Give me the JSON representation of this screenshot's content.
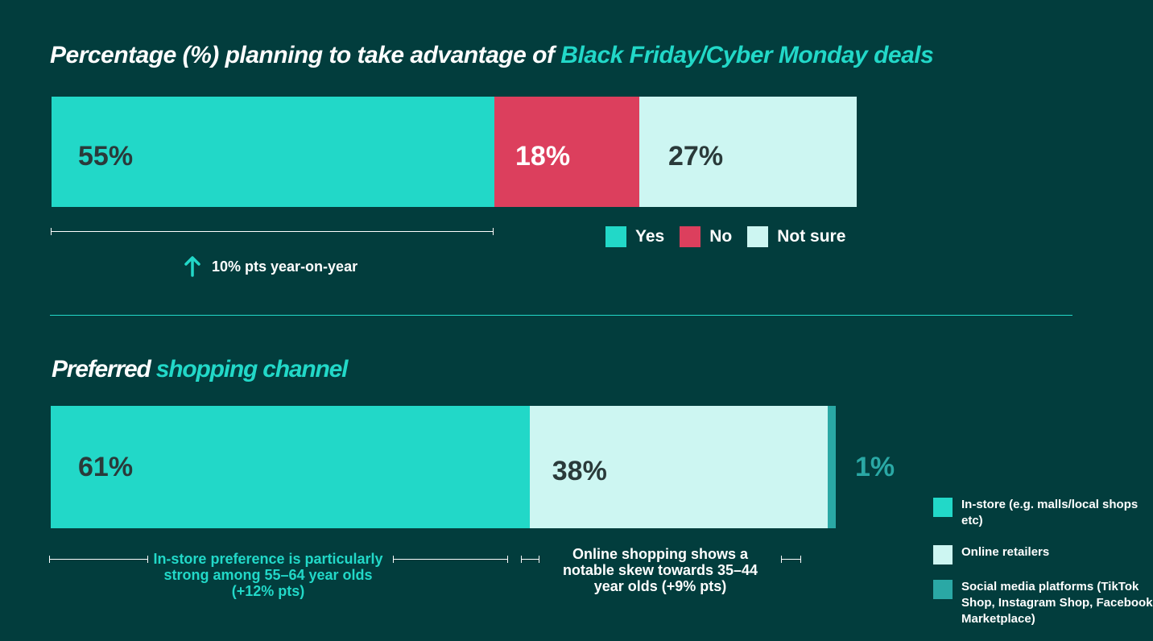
{
  "colors": {
    "background": "#023d3d",
    "accent": "#22d8c8",
    "yes": "#22d8c8",
    "no": "#dc3f5d",
    "not_sure": "#cdf6f2",
    "in_store": "#22d8c8",
    "online": "#cdf6f2",
    "social": "#2aa8a5"
  },
  "chart_data": [
    {
      "type": "bar",
      "orientation": "horizontal-stacked",
      "title_part1": "Percentage (%) planning to take advantage of ",
      "title_part2": "Black Friday/Cyber Monday deals",
      "series": [
        {
          "name": "Yes",
          "value": 55,
          "label": "55%"
        },
        {
          "name": "No",
          "value": 18,
          "label": "18%"
        },
        {
          "name": "Not sure",
          "value": 27,
          "label": "27%"
        }
      ],
      "legend": [
        "Yes",
        "No",
        "Not sure"
      ],
      "legend_placement": "bottom-right",
      "annotation": "10% pts year-on-year",
      "annotation_icon": "arrow-up-icon"
    },
    {
      "type": "bar",
      "orientation": "horizontal-stacked",
      "title_part1": "Preferred ",
      "title_part2": "shopping channel",
      "series": [
        {
          "name": "In-store (e.g. malls/local shops etc)",
          "value": 61,
          "label": "61%"
        },
        {
          "name": "Online retailers",
          "value": 38,
          "label": "38%"
        },
        {
          "name": "Social media platforms (TikTok Shop, Instagram Shop, Facebook Marketplace)",
          "value": 1,
          "label": "1%"
        }
      ],
      "legend": [
        "In-store (e.g. malls/local shops etc)",
        "Online retailers",
        "Social media platforms (TikTok Shop, Instagram Shop, Facebook Marketplace)"
      ],
      "legend_placement": "bottom-right",
      "notes": [
        "In-store preference is particularly strong among 55–64 year olds (+12% pts)",
        "Online shopping shows a notable skew towards 35–44 year olds (+9% pts)"
      ]
    }
  ]
}
